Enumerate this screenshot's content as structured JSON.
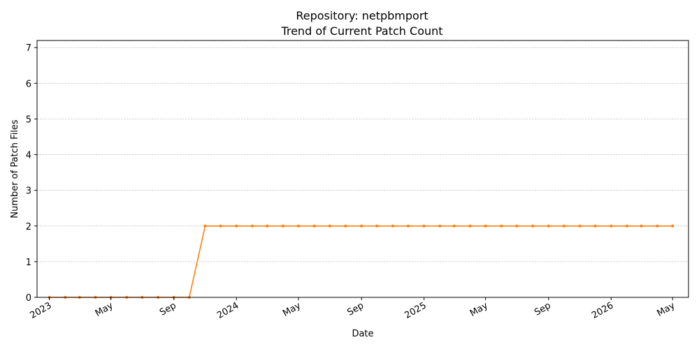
{
  "chart_data": {
    "type": "line",
    "title": "Repository: netpbmport",
    "subtitle": "Trend of Current Patch Count",
    "xlabel": "Date",
    "ylabel": "Number of Patch Files",
    "ylim": [
      0,
      7.2
    ],
    "xlim": [
      "2022-12-08",
      "2026-06-01"
    ],
    "yticks": [
      0,
      1,
      2,
      3,
      4,
      5,
      6,
      7
    ],
    "xticks": [
      {
        "date": "2023-01-01",
        "label": "2023"
      },
      {
        "date": "2023-05-01",
        "label": "May"
      },
      {
        "date": "2023-09-01",
        "label": "Sep"
      },
      {
        "date": "2024-01-01",
        "label": "2024"
      },
      {
        "date": "2024-05-01",
        "label": "May"
      },
      {
        "date": "2024-09-01",
        "label": "Sep"
      },
      {
        "date": "2025-01-01",
        "label": "2025"
      },
      {
        "date": "2025-05-01",
        "label": "May"
      },
      {
        "date": "2025-09-01",
        "label": "Sep"
      },
      {
        "date": "2026-01-01",
        "label": "2026"
      },
      {
        "date": "2026-05-01",
        "label": "May"
      }
    ],
    "grid": "y",
    "color": "#ff7f0e",
    "series": [
      {
        "x": [
          "2023-01-01",
          "2023-02-01",
          "2023-03-01",
          "2023-04-01",
          "2023-05-01",
          "2023-06-01",
          "2023-07-01",
          "2023-08-01",
          "2023-09-01",
          "2023-10-01",
          "2023-11-01",
          "2023-12-01",
          "2024-01-01",
          "2024-02-01",
          "2024-03-01",
          "2024-04-01",
          "2024-05-01",
          "2024-06-01",
          "2024-07-01",
          "2024-08-01",
          "2024-09-01",
          "2024-10-01",
          "2024-11-01",
          "2024-12-01",
          "2025-01-01",
          "2025-02-01",
          "2025-03-01",
          "2025-04-01",
          "2025-05-01",
          "2025-06-01",
          "2025-07-01",
          "2025-08-01",
          "2025-09-01",
          "2025-10-01",
          "2025-11-01",
          "2025-12-01",
          "2026-01-01",
          "2026-02-01",
          "2026-03-01",
          "2026-04-01",
          "2026-05-01"
        ],
        "y": [
          0,
          0,
          0,
          0,
          0,
          0,
          0,
          0,
          0,
          0,
          2,
          2,
          2,
          2,
          2,
          2,
          2,
          2,
          2,
          2,
          2,
          2,
          2,
          2,
          2,
          2,
          2,
          2,
          2,
          2,
          2,
          2,
          2,
          2,
          2,
          2,
          2,
          2,
          2,
          2,
          2
        ]
      }
    ]
  }
}
